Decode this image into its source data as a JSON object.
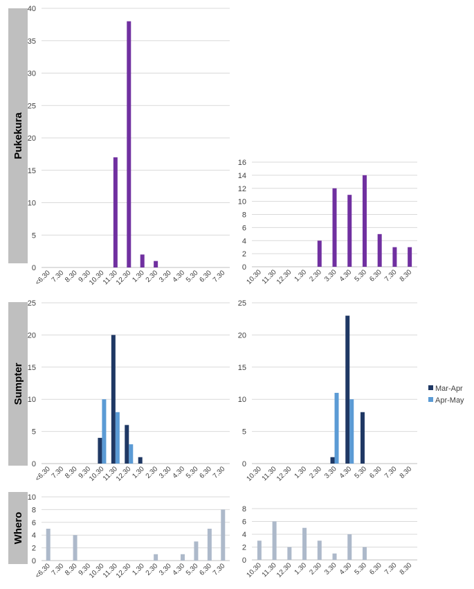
{
  "row_labels": [
    "Pukekura",
    "Sumpter",
    "Whero"
  ],
  "legend": [
    {
      "label": "Mar-Apr",
      "color": "#1f3864"
    },
    {
      "label": "Apr-May",
      "color": "#5b9bd5"
    }
  ],
  "chart_data": [
    {
      "type": "bar",
      "row": "Pukekura",
      "categories": [
        "<6.30",
        "7.30",
        "8.30",
        "9.30",
        "10.30",
        "11.30",
        "12.30",
        "1.30",
        "2.30",
        "3.30",
        "4.30",
        "5.30",
        "6.30",
        "7.30"
      ],
      "series": [
        {
          "values": [
            0,
            0,
            0,
            0,
            0,
            17,
            38,
            2,
            1,
            0,
            0,
            0,
            0,
            0
          ],
          "color": "#7030a0"
        }
      ],
      "ylim": [
        0,
        40
      ],
      "yticks": [
        0,
        5,
        10,
        15,
        20,
        25,
        30,
        35,
        40
      ],
      "grid": true
    },
    {
      "type": "bar",
      "row": "Pukekura",
      "categories": [
        "10.30",
        "11.30",
        "12.30",
        "1.30",
        "2.30",
        "3.30",
        "4.30",
        "5.30",
        "6.30",
        "7.30",
        "8.30"
      ],
      "series": [
        {
          "values": [
            0,
            0,
            0,
            0,
            4,
            12,
            11,
            14,
            5,
            3,
            3
          ],
          "color": "#7030a0"
        }
      ],
      "ylim": [
        0,
        16
      ],
      "yticks": [
        0,
        2,
        4,
        6,
        8,
        10,
        12,
        14,
        16
      ],
      "grid": true
    },
    {
      "type": "bar",
      "row": "Sumpter",
      "categories": [
        "<6.30",
        "7.30",
        "8.30",
        "9.30",
        "10.30",
        "11.30",
        "12.30",
        "1.30",
        "2.30",
        "3.30",
        "4.30",
        "5.30",
        "6.30",
        "7.30"
      ],
      "series": [
        {
          "name": "Mar-Apr",
          "values": [
            0,
            0,
            0,
            0,
            4,
            20,
            6,
            1,
            0,
            0,
            0,
            0,
            0,
            0
          ],
          "color": "#1f3864"
        },
        {
          "name": "Apr-May",
          "values": [
            0,
            0,
            0,
            0,
            10,
            8,
            3,
            0,
            0,
            0,
            0,
            0,
            0,
            0
          ],
          "color": "#5b9bd5"
        }
      ],
      "ylim": [
        0,
        25
      ],
      "yticks": [
        0,
        5,
        10,
        15,
        20,
        25
      ],
      "grid": true
    },
    {
      "type": "bar",
      "row": "Sumpter",
      "categories": [
        "10.30",
        "11.30",
        "12.30",
        "1.30",
        "2.30",
        "3.30",
        "4.30",
        "5.30",
        "6.30",
        "7.30",
        "8.30"
      ],
      "series": [
        {
          "name": "Mar-Apr",
          "values": [
            0,
            0,
            0,
            0,
            0,
            1,
            23,
            8,
            0,
            0,
            0
          ],
          "color": "#1f3864"
        },
        {
          "name": "Apr-May",
          "values": [
            0,
            0,
            0,
            0,
            0,
            11,
            10,
            0,
            0,
            0,
            0
          ],
          "color": "#5b9bd5"
        }
      ],
      "ylim": [
        0,
        25
      ],
      "yticks": [
        0,
        5,
        10,
        15,
        20,
        25
      ],
      "grid": true,
      "legend": "right"
    },
    {
      "type": "bar",
      "row": "Whero",
      "categories": [
        "<6.30",
        "7.30",
        "8.30",
        "9.30",
        "10.30",
        "11.30",
        "12.30",
        "1.30",
        "2.30",
        "3.30",
        "4.30",
        "5.30",
        "6.30",
        "7.30"
      ],
      "series": [
        {
          "values": [
            5,
            0,
            4,
            0,
            0,
            0,
            0,
            0,
            1,
            0,
            1,
            3,
            5,
            8
          ],
          "color": "#adb9ca"
        }
      ],
      "ylim": [
        0,
        10
      ],
      "yticks": [
        0,
        2,
        4,
        6,
        8,
        10
      ],
      "grid": true
    },
    {
      "type": "bar",
      "row": "Whero",
      "categories": [
        "10.30",
        "11.30",
        "12.30",
        "1.30",
        "2.30",
        "3.30",
        "4.30",
        "5.30",
        "6.30",
        "7.30",
        "8.30"
      ],
      "series": [
        {
          "values": [
            3,
            6,
            2,
            5,
            3,
            1,
            4,
            2,
            0,
            0,
            0
          ],
          "color": "#adb9ca"
        }
      ],
      "ylim": [
        0,
        8
      ],
      "yticks": [
        0,
        2,
        4,
        6,
        8
      ],
      "grid": true
    }
  ]
}
